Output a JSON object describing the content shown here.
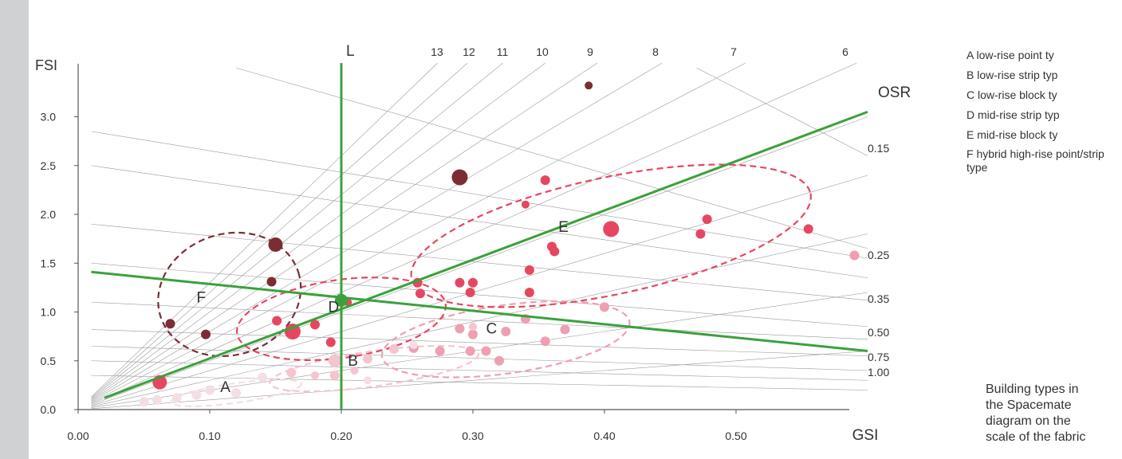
{
  "caption": "Building types in\nthe Spacemate\ndiagram on the\nscale of the fabric",
  "legend": [
    {
      "key": "A",
      "text": "low-rise point ty"
    },
    {
      "key": "B",
      "text": "low-rise strip typ"
    },
    {
      "key": "C",
      "text": "low-rise block ty"
    },
    {
      "key": "D",
      "text": "mid-rise strip typ"
    },
    {
      "key": "E",
      "text": "mid-rise block ty"
    },
    {
      "key": "F",
      "text": "hybrid high-rise point/strip type"
    }
  ],
  "colors": {
    "green": "#3aa13d",
    "dark": "#7a2e34",
    "red": "#e64760",
    "pink": "#ee9fb1",
    "lightpink": "#f5c4cf",
    "palepink": "#f3dee4",
    "grid": "#9a9a9a"
  },
  "chart_data": {
    "type": "scatter",
    "xlabel": "GSI",
    "ylabel": "FSI",
    "xlim": [
      0,
      0.6
    ],
    "ylim": [
      0,
      3.5
    ],
    "xticks": [
      "0.00",
      "0.10",
      "0.20",
      "0.30",
      "0.40",
      "0.50"
    ],
    "yticks": [
      "0.0",
      "0.5",
      "1.0",
      "1.5",
      "2.0",
      "2.5",
      "3.0"
    ],
    "layer_lines": [
      13,
      12,
      11,
      10,
      9,
      8,
      7,
      6,
      5,
      4,
      3,
      2,
      1
    ],
    "layer_labels": [
      "13",
      "12",
      "11",
      "10",
      "9",
      "8",
      "7",
      "6"
    ],
    "osr_title": "OSR",
    "osr_lines": [
      0.15,
      0.25,
      0.35,
      0.5,
      0.75,
      1.0,
      1.5,
      2.0,
      3.0
    ],
    "osr_labels": [
      "0.15",
      "0.25",
      "0.35",
      "0.50",
      "0.75",
      "1.00"
    ],
    "l_label": "L",
    "clusters": [
      {
        "label": "A",
        "center": [
          0.12,
          0.17
        ],
        "radius": [
          0.05,
          0.1
        ]
      },
      {
        "label": "B",
        "center": [
          0.225,
          0.42
        ],
        "radius": [
          0.08,
          0.18
        ]
      },
      {
        "label": "C",
        "center": [
          0.325,
          0.72
        ],
        "radius": [
          0.095,
          0.35
        ]
      },
      {
        "label": "D",
        "center": [
          0.2,
          0.93
        ],
        "radius": [
          0.08,
          0.4
        ]
      },
      {
        "label": "E",
        "center": [
          0.405,
          1.78
        ],
        "radius": [
          0.155,
          0.6
        ]
      },
      {
        "label": "F",
        "center": [
          0.115,
          1.18
        ],
        "radius": [
          0.055,
          0.62
        ]
      }
    ],
    "green_lines": {
      "vertical_x": 0.2,
      "point": [
        0.2,
        1.12
      ],
      "rising": [
        [
          0.02,
          0.12
        ],
        [
          0.6,
          3.05
        ]
      ],
      "falling": [
        [
          0.01,
          1.41
        ],
        [
          0.6,
          0.6
        ]
      ]
    },
    "points": [
      {
        "x": 0.388,
        "y": 3.32,
        "r": 5,
        "color": "dark"
      },
      {
        "x": 0.29,
        "y": 2.38,
        "r": 10,
        "color": "dark"
      },
      {
        "x": 0.15,
        "y": 1.69,
        "r": 9,
        "color": "dark"
      },
      {
        "x": 0.147,
        "y": 1.31,
        "r": 6,
        "color": "dark"
      },
      {
        "x": 0.07,
        "y": 0.88,
        "r": 6,
        "color": "dark"
      },
      {
        "x": 0.097,
        "y": 0.77,
        "r": 6,
        "color": "dark"
      },
      {
        "x": 0.355,
        "y": 2.35,
        "r": 6,
        "color": "red"
      },
      {
        "x": 0.34,
        "y": 2.1,
        "r": 5,
        "color": "red"
      },
      {
        "x": 0.405,
        "y": 1.85,
        "r": 10,
        "color": "red"
      },
      {
        "x": 0.36,
        "y": 1.67,
        "r": 6,
        "color": "red"
      },
      {
        "x": 0.362,
        "y": 1.62,
        "r": 6,
        "color": "red"
      },
      {
        "x": 0.478,
        "y": 1.95,
        "r": 6,
        "color": "red"
      },
      {
        "x": 0.473,
        "y": 1.8,
        "r": 6,
        "color": "red"
      },
      {
        "x": 0.555,
        "y": 1.85,
        "r": 6,
        "color": "red"
      },
      {
        "x": 0.343,
        "y": 1.43,
        "r": 6,
        "color": "red"
      },
      {
        "x": 0.258,
        "y": 1.3,
        "r": 6,
        "color": "red"
      },
      {
        "x": 0.26,
        "y": 1.19,
        "r": 6,
        "color": "red"
      },
      {
        "x": 0.29,
        "y": 1.3,
        "r": 6,
        "color": "red"
      },
      {
        "x": 0.3,
        "y": 1.3,
        "r": 6,
        "color": "red"
      },
      {
        "x": 0.298,
        "y": 1.2,
        "r": 6,
        "color": "red"
      },
      {
        "x": 0.343,
        "y": 1.2,
        "r": 6,
        "color": "red"
      },
      {
        "x": 0.205,
        "y": 1.1,
        "r": 5,
        "color": "red"
      },
      {
        "x": 0.151,
        "y": 0.91,
        "r": 6,
        "color": "red"
      },
      {
        "x": 0.18,
        "y": 0.87,
        "r": 6,
        "color": "red"
      },
      {
        "x": 0.163,
        "y": 0.8,
        "r": 10,
        "color": "red"
      },
      {
        "x": 0.192,
        "y": 0.69,
        "r": 6,
        "color": "red"
      },
      {
        "x": 0.062,
        "y": 0.28,
        "r": 9,
        "color": "red"
      },
      {
        "x": 0.59,
        "y": 1.58,
        "r": 6,
        "color": "pink"
      },
      {
        "x": 0.4,
        "y": 1.05,
        "r": 6,
        "color": "pink"
      },
      {
        "x": 0.34,
        "y": 0.93,
        "r": 6,
        "color": "pink"
      },
      {
        "x": 0.37,
        "y": 0.82,
        "r": 6,
        "color": "pink"
      },
      {
        "x": 0.325,
        "y": 0.8,
        "r": 6,
        "color": "pink"
      },
      {
        "x": 0.29,
        "y": 0.83,
        "r": 6,
        "color": "pink"
      },
      {
        "x": 0.3,
        "y": 0.77,
        "r": 6,
        "color": "pink"
      },
      {
        "x": 0.298,
        "y": 0.6,
        "r": 6,
        "color": "pink"
      },
      {
        "x": 0.31,
        "y": 0.6,
        "r": 6,
        "color": "pink"
      },
      {
        "x": 0.275,
        "y": 0.6,
        "r": 6,
        "color": "pink"
      },
      {
        "x": 0.255,
        "y": 0.63,
        "r": 6,
        "color": "pink"
      },
      {
        "x": 0.355,
        "y": 0.7,
        "r": 6,
        "color": "pink"
      },
      {
        "x": 0.32,
        "y": 0.5,
        "r": 6,
        "color": "pink"
      },
      {
        "x": 0.3,
        "y": 0.85,
        "r": 5,
        "color": "lightpink"
      },
      {
        "x": 0.24,
        "y": 0.62,
        "r": 6,
        "color": "lightpink"
      },
      {
        "x": 0.22,
        "y": 0.52,
        "r": 6,
        "color": "lightpink"
      },
      {
        "x": 0.195,
        "y": 0.5,
        "r": 8,
        "color": "lightpink"
      },
      {
        "x": 0.162,
        "y": 0.38,
        "r": 6,
        "color": "lightpink"
      },
      {
        "x": 0.18,
        "y": 0.35,
        "r": 5,
        "color": "lightpink"
      },
      {
        "x": 0.195,
        "y": 0.35,
        "r": 6,
        "color": "lightpink"
      },
      {
        "x": 0.21,
        "y": 0.4,
        "r": 5,
        "color": "lightpink"
      },
      {
        "x": 0.255,
        "y": 0.66,
        "r": 5,
        "color": "palepink"
      },
      {
        "x": 0.14,
        "y": 0.33,
        "r": 6,
        "color": "palepink"
      },
      {
        "x": 0.12,
        "y": 0.17,
        "r": 6,
        "color": "palepink"
      },
      {
        "x": 0.09,
        "y": 0.15,
        "r": 6,
        "color": "palepink"
      },
      {
        "x": 0.075,
        "y": 0.12,
        "r": 6,
        "color": "palepink"
      },
      {
        "x": 0.06,
        "y": 0.1,
        "r": 6,
        "color": "palepink"
      },
      {
        "x": 0.05,
        "y": 0.08,
        "r": 6,
        "color": "palepink"
      },
      {
        "x": 0.1,
        "y": 0.2,
        "r": 6,
        "color": "palepink"
      },
      {
        "x": 0.22,
        "y": 0.3,
        "r": 5,
        "color": "palepink"
      }
    ]
  }
}
